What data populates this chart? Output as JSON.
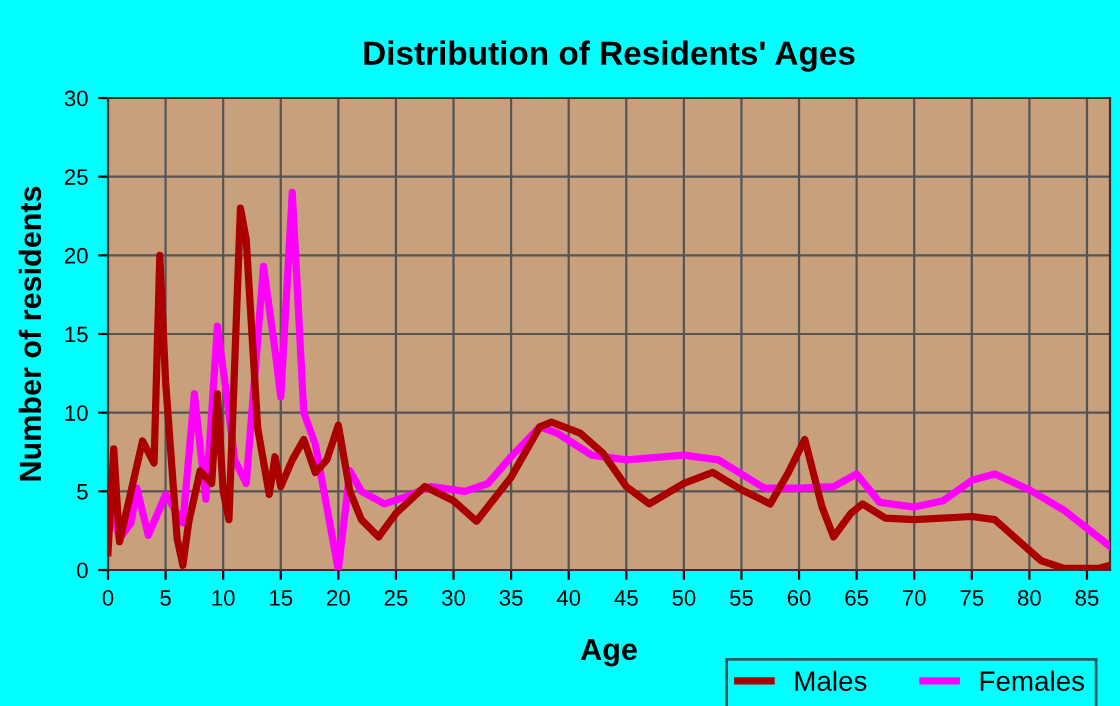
{
  "chart_data": {
    "type": "line",
    "title": "Distribution of Residents' Ages",
    "xlabel": "Age",
    "ylabel": "Number of residents",
    "xlim": [
      0,
      87
    ],
    "xticks": [
      0,
      5,
      10,
      15,
      20,
      25,
      30,
      35,
      40,
      45,
      50,
      55,
      60,
      65,
      70,
      75,
      80,
      85
    ],
    "ylim": [
      0,
      30
    ],
    "yticks": [
      0,
      5,
      10,
      15,
      20,
      25,
      30
    ],
    "grid": true,
    "legend": "bottom right",
    "marker": "none",
    "line_style": "solid",
    "series": [
      {
        "name": "Males",
        "color": "#aa0000",
        "x": [
          0,
          0.5,
          1,
          2,
          3,
          4,
          4.5,
          5,
          6,
          6.5,
          7,
          8,
          9,
          9.5,
          10,
          10.5,
          11.5,
          12,
          13,
          14,
          14.5,
          15,
          16,
          17,
          18,
          19,
          20,
          21,
          22,
          23.5,
          25,
          27.5,
          30,
          32,
          35,
          37.5,
          38.5,
          41,
          43,
          45,
          47,
          50,
          52.5,
          55,
          57.5,
          59,
          60.5,
          62,
          63,
          64.5,
          65.5,
          67.5,
          70,
          75,
          77,
          79,
          81,
          83,
          86,
          87
        ],
        "values": [
          1.1,
          7.7,
          1.8,
          5,
          8.2,
          6.8,
          20,
          12,
          2,
          0.3,
          3,
          6.3,
          5.5,
          11.2,
          5,
          3.2,
          23,
          21,
          9,
          4.8,
          7.2,
          5.3,
          7,
          8.3,
          6.2,
          7,
          9.2,
          5,
          3.2,
          2.1,
          3.6,
          5.3,
          4.4,
          3.1,
          5.9,
          9.1,
          9.4,
          8.7,
          7.4,
          5.3,
          4.2,
          5.5,
          6.2,
          5.1,
          4.2,
          6.1,
          8.3,
          4,
          2.1,
          3.6,
          4.2,
          3.3,
          3.2,
          3.4,
          3.2,
          1.9,
          0.6,
          0.1,
          0.1,
          0.3
        ]
      },
      {
        "name": "Females",
        "color": "#ff00ff",
        "x": [
          0,
          1,
          2,
          2.5,
          3.5,
          5,
          6.5,
          7.5,
          8.5,
          9.5,
          10.5,
          11,
          12,
          13.5,
          14.5,
          15,
          16,
          17,
          18,
          19,
          20,
          21,
          22,
          24,
          26,
          28,
          31,
          33,
          35,
          37.5,
          39,
          42,
          45,
          50,
          53,
          55,
          57,
          60,
          63,
          65,
          67,
          70,
          72.5,
          75,
          77,
          80,
          83,
          87
        ],
        "values": [
          5,
          2,
          3,
          5.2,
          2.2,
          4.8,
          3,
          11.2,
          4.5,
          15.5,
          10,
          7,
          5.5,
          19.3,
          14,
          11,
          24,
          10,
          8,
          4,
          0,
          6.3,
          5,
          4.2,
          4.7,
          5.3,
          5,
          5.5,
          7.2,
          9.1,
          8.7,
          7.3,
          7,
          7.3,
          7,
          6.1,
          5.2,
          5.2,
          5.3,
          6.1,
          4.3,
          4,
          4.4,
          5.7,
          6.1,
          5.1,
          3.8,
          1.5
        ]
      }
    ]
  }
}
